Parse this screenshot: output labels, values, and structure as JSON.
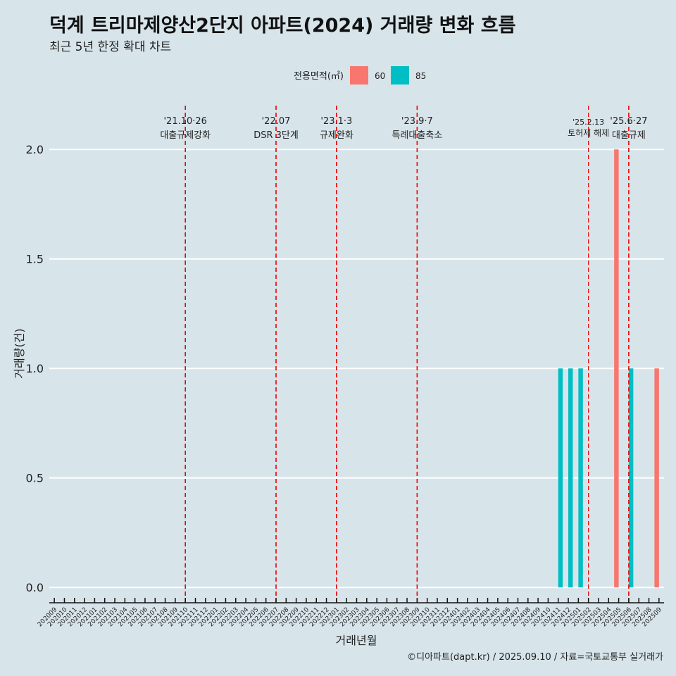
{
  "title": "덕계 트리마제양산2단지 아파트(2024) 거래량 변화 흐름",
  "subtitle": "최근 5년 한정 확대 차트",
  "footer": "©디아파트(dapt.kr) / 2025.09.10 / 자료=국토교통부 실거래가",
  "colors": {
    "background": "#d7e4ea",
    "area60": "#f8766d",
    "area85": "#00bfc4",
    "event_line": "#ee0000"
  },
  "chart_data": {
    "type": "bar",
    "xlabel": "거래년월",
    "ylabel": "거래량(건)",
    "ylim": [
      -0.07,
      2.2
    ],
    "yticks": [
      "0.0",
      "0.5",
      "1.0",
      "1.5",
      "2.0"
    ],
    "grid": "horizontal",
    "legend": {
      "title": "전용면적(㎡)",
      "position": "top",
      "entries": [
        "60",
        "85"
      ]
    },
    "categories": [
      "202009",
      "202010",
      "202011",
      "202012",
      "202101",
      "202102",
      "202103",
      "202104",
      "202105",
      "202106",
      "202107",
      "202108",
      "202109",
      "202110",
      "202111",
      "202112",
      "202201",
      "202202",
      "202203",
      "202204",
      "202205",
      "202206",
      "202207",
      "202208",
      "202209",
      "202210",
      "202211",
      "202212",
      "202301",
      "202302",
      "202303",
      "202304",
      "202305",
      "202306",
      "202307",
      "202308",
      "202309",
      "202310",
      "202311",
      "202312",
      "202401",
      "202402",
      "202403",
      "202404",
      "202405",
      "202406",
      "202407",
      "202408",
      "202409",
      "202410",
      "202411",
      "202412",
      "202501",
      "202502",
      "202503",
      "202504",
      "202505",
      "202506",
      "202507",
      "202508",
      "202509"
    ],
    "series": [
      {
        "name": "60",
        "values": [
          0,
          0,
          0,
          0,
          0,
          0,
          0,
          0,
          0,
          0,
          0,
          0,
          0,
          0,
          0,
          0,
          0,
          0,
          0,
          0,
          0,
          0,
          0,
          0,
          0,
          0,
          0,
          0,
          0,
          0,
          0,
          0,
          0,
          0,
          0,
          0,
          0,
          0,
          0,
          0,
          0,
          0,
          0,
          0,
          0,
          0,
          0,
          0,
          0,
          0,
          0,
          0,
          0,
          0,
          0,
          0,
          2,
          0,
          0,
          0,
          1
        ]
      },
      {
        "name": "85",
        "values": [
          0,
          0,
          0,
          0,
          0,
          0,
          0,
          0,
          0,
          0,
          0,
          0,
          0,
          0,
          0,
          0,
          0,
          0,
          0,
          0,
          0,
          0,
          0,
          0,
          0,
          0,
          0,
          0,
          0,
          0,
          0,
          0,
          0,
          0,
          0,
          0,
          0,
          0,
          0,
          0,
          0,
          0,
          0,
          0,
          0,
          0,
          0,
          0,
          0,
          0,
          1,
          1,
          1,
          0,
          0,
          0,
          0,
          1,
          0,
          0,
          0
        ]
      }
    ],
    "annotations": [
      {
        "date": "'21.10·26",
        "label": "대출규제강화",
        "x": "202110",
        "size": "normal"
      },
      {
        "date": "'22.07",
        "label": "DSR 3단계",
        "x": "202207",
        "size": "normal"
      },
      {
        "date": "'23.1·3",
        "label": "규제완화",
        "x": "202301",
        "size": "normal"
      },
      {
        "date": "'23.9·7",
        "label": "특례대출축소",
        "x": "202309",
        "size": "normal"
      },
      {
        "date": "'25.2.13",
        "label": "토허제 해제",
        "x": "202502",
        "size": "small"
      },
      {
        "date": "'25.6·27",
        "label": "대출규제",
        "x": "202506",
        "size": "normal"
      }
    ]
  }
}
